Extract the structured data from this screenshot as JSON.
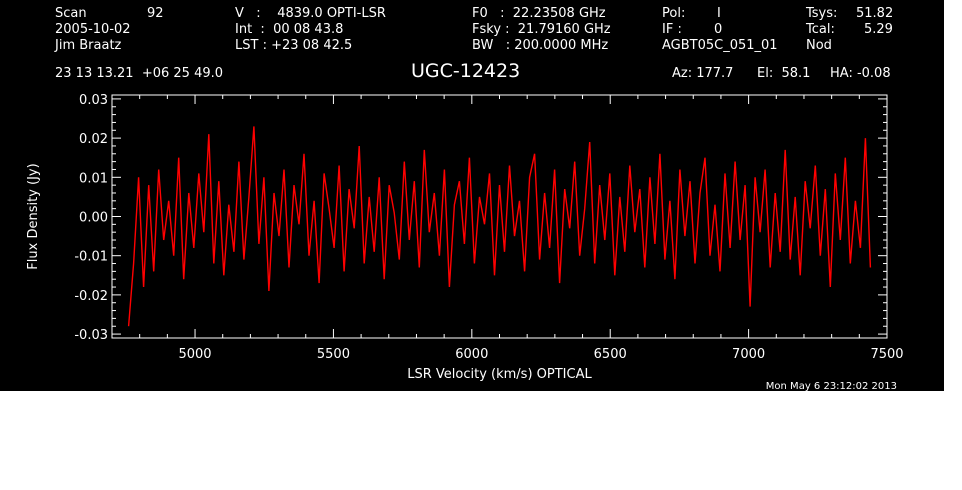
{
  "header": {
    "scan_label": "Scan",
    "scan_value": "92",
    "date": "2005-10-02",
    "observer": "Jim Braatz",
    "v_line": "V   :    4839.0 OPTI-LSR",
    "int_line": "Int  :  00 08 43.8",
    "lst_line": "LST : +23 08 42.5",
    "f0_line": "F0   :  22.23508 GHz",
    "fsky_line": "Fsky :  21.79160 GHz",
    "bw_line": "BW   : 200.0000 MHz",
    "pol_label": "Pol:",
    "pol_value": "I",
    "if_label": "IF :",
    "if_value": "0",
    "project": "AGBT05C_051_01",
    "tsys_label": "Tsys:",
    "tsys_value": "51.82",
    "tcal_label": "Tcal:",
    "tcal_value": "5.29",
    "mode": "Nod",
    "coords": "23 13 13.21  +06 25 49.0",
    "source": "UGC-12423",
    "az_line": "Az: 177.7",
    "el_line": "El:  58.1",
    "ha_line": "HA: -0.08"
  },
  "timestamp": "Mon May  6 23:12:02 2013",
  "colors": {
    "background": "#000000",
    "axes": "#ffffff",
    "series": "#ff0000"
  },
  "chart_data": {
    "type": "line",
    "xlabel": "LSR Velocity (km/s) OPTICAL",
    "ylabel": "Flux Density (Jy)",
    "xlim": [
      4700,
      7500
    ],
    "ylim": [
      -0.031,
      0.031
    ],
    "x_ticks": [
      5000,
      5500,
      6000,
      6500,
      7000,
      7500
    ],
    "y_ticks": [
      -0.03,
      -0.02,
      -0.01,
      0.0,
      0.01,
      0.02,
      0.03
    ],
    "y_tick_labels": [
      "-0.03",
      "-0.02",
      "-0.01",
      "0.00",
      "0.01",
      "0.02",
      "0.03"
    ],
    "grid": false,
    "series": [
      {
        "color": "#ff0000",
        "x_range": [
          4760,
          7440
        ],
        "values": [
          -0.028,
          -0.012,
          0.01,
          -0.018,
          0.008,
          -0.014,
          0.012,
          -0.006,
          0.004,
          -0.01,
          0.015,
          -0.016,
          0.006,
          -0.008,
          0.011,
          -0.004,
          0.021,
          -0.012,
          0.009,
          -0.015,
          0.003,
          -0.009,
          0.014,
          -0.011,
          0.005,
          0.023,
          -0.007,
          0.01,
          -0.019,
          0.006,
          -0.005,
          0.012,
          -0.013,
          0.008,
          -0.002,
          0.016,
          -0.01,
          0.004,
          -0.017,
          0.011,
          0.002,
          -0.008,
          0.013,
          -0.014,
          0.007,
          -0.003,
          0.018,
          -0.012,
          0.005,
          -0.009,
          0.01,
          -0.016,
          0.008,
          0.001,
          -0.011,
          0.014,
          -0.006,
          0.009,
          -0.013,
          0.017,
          -0.004,
          0.006,
          -0.01,
          0.012,
          -0.018,
          0.003,
          0.009,
          -0.007,
          0.015,
          -0.012,
          0.005,
          -0.002,
          0.011,
          -0.015,
          0.008,
          -0.009,
          0.013,
          -0.005,
          0.004,
          -0.014,
          0.01,
          0.016,
          -0.011,
          0.006,
          -0.008,
          0.012,
          -0.017,
          0.007,
          -0.003,
          0.014,
          -0.01,
          0.002,
          0.019,
          -0.012,
          0.008,
          -0.006,
          0.011,
          -0.015,
          0.005,
          -0.009,
          0.013,
          -0.004,
          0.007,
          -0.013,
          0.01,
          -0.007,
          0.016,
          -0.011,
          0.004,
          -0.016,
          0.012,
          -0.005,
          0.009,
          -0.012,
          0.006,
          0.015,
          -0.01,
          0.003,
          -0.014,
          0.011,
          -0.008,
          0.014,
          -0.006,
          0.008,
          -0.023,
          0.01,
          -0.004,
          0.012,
          -0.013,
          0.006,
          -0.009,
          0.017,
          -0.011,
          0.005,
          -0.015,
          0.009,
          -0.003,
          0.013,
          -0.01,
          0.007,
          -0.018,
          0.011,
          -0.006,
          0.015,
          -0.012,
          0.004,
          -0.008,
          0.02,
          -0.013
        ]
      }
    ]
  }
}
